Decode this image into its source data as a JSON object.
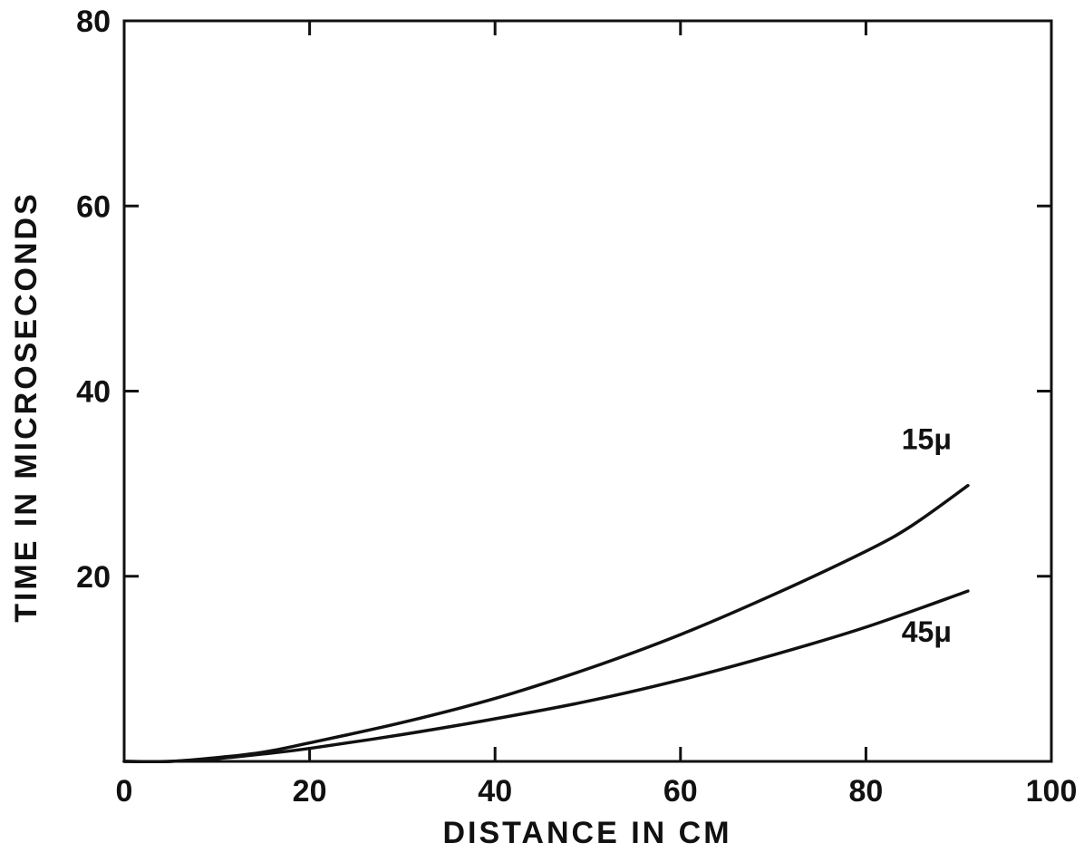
{
  "chart_data": {
    "type": "line",
    "title": "",
    "xlabel": "DISTANCE IN CM",
    "ylabel": "TIME IN MICROSECONDS",
    "xlim": [
      0,
      100
    ],
    "ylim": [
      0,
      80
    ],
    "xticks": [
      0,
      20,
      40,
      60,
      80,
      100
    ],
    "yticks": [
      20,
      40,
      60,
      80
    ],
    "x_tick_labels": [
      "0",
      "20",
      "40",
      "60",
      "80",
      "100"
    ],
    "y_tick_labels": [
      "20",
      "40",
      "60",
      "80"
    ],
    "grid": false,
    "legend": "none",
    "line_color": "#111111",
    "series": [
      {
        "name": "15μ",
        "x": [
          0,
          5,
          10,
          15,
          20,
          30,
          40,
          50,
          60,
          70,
          80,
          85,
          91
        ],
        "y": [
          0,
          0,
          0.4,
          1.0,
          2.0,
          4.2,
          6.8,
          10.0,
          13.7,
          18.0,
          22.7,
          25.5,
          29.8
        ]
      },
      {
        "name": "45μ",
        "x": [
          0,
          5,
          10,
          15,
          20,
          30,
          40,
          50,
          60,
          70,
          80,
          91
        ],
        "y": [
          0,
          0,
          0.3,
          0.8,
          1.4,
          2.9,
          4.6,
          6.5,
          8.8,
          11.5,
          14.5,
          18.4
        ]
      }
    ]
  }
}
